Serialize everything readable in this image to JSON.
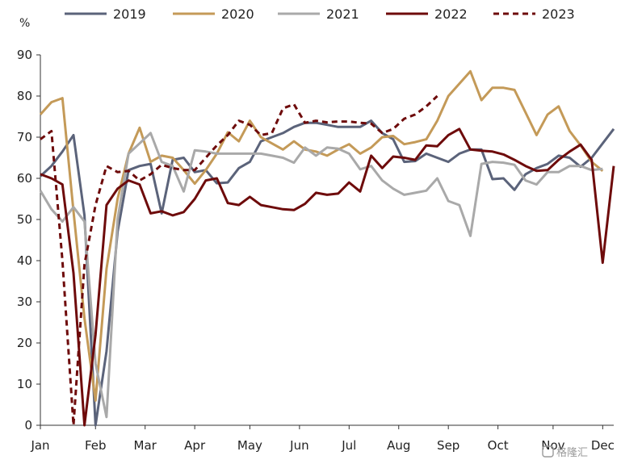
{
  "chart_data": {
    "type": "line",
    "ylabel": "%",
    "ylim": [
      0,
      90
    ],
    "y_ticks": [
      0,
      10,
      20,
      30,
      40,
      50,
      60,
      70,
      80,
      90
    ],
    "x_range": [
      1,
      53
    ],
    "month_labels": [
      "Jan",
      "Feb",
      "Mar",
      "Apr",
      "May",
      "Jun",
      "Jul",
      "Aug",
      "Sep",
      "Oct",
      "Nov",
      "Dec"
    ],
    "month_tick_positions": [
      1,
      6,
      10.5,
      15,
      20,
      24.5,
      29,
      33.5,
      38,
      42.5,
      47.5,
      52
    ],
    "legend_position": "top",
    "grid": false,
    "series": [
      {
        "name": "2019",
        "color": "#5b637a",
        "dash": "solid",
        "points": [
          [
            1,
            60.5
          ],
          [
            2,
            63
          ],
          [
            3,
            66.5
          ],
          [
            4,
            70.5
          ],
          [
            5,
            51
          ],
          [
            6,
            0
          ],
          [
            7,
            18
          ],
          [
            8,
            47
          ],
          [
            9,
            62
          ],
          [
            10,
            63
          ],
          [
            11,
            63.5
          ],
          [
            12,
            51.5
          ],
          [
            13,
            64.5
          ],
          [
            14,
            65
          ],
          [
            15,
            61.5
          ],
          [
            16,
            62
          ],
          [
            17,
            58.8
          ],
          [
            18,
            59
          ],
          [
            19,
            62.5
          ],
          [
            20,
            64
          ],
          [
            21,
            69
          ],
          [
            22,
            70
          ],
          [
            23,
            71
          ],
          [
            24,
            72.5
          ],
          [
            25,
            73.5
          ],
          [
            26,
            73.5
          ],
          [
            27,
            73
          ],
          [
            28,
            72.5
          ],
          [
            29,
            72.5
          ],
          [
            30,
            72.5
          ],
          [
            31,
            74
          ],
          [
            32,
            71
          ],
          [
            33,
            69.5
          ],
          [
            34,
            64
          ],
          [
            35,
            64.2
          ],
          [
            36,
            66
          ],
          [
            37,
            65
          ],
          [
            38,
            64
          ],
          [
            39,
            66
          ],
          [
            40,
            67
          ],
          [
            41,
            67
          ],
          [
            42,
            59.8
          ],
          [
            43,
            60
          ],
          [
            44,
            57.2
          ],
          [
            45,
            61
          ],
          [
            46,
            62.5
          ],
          [
            47,
            63.5
          ],
          [
            48,
            65.5
          ],
          [
            49,
            65
          ],
          [
            50,
            62.8
          ],
          [
            51,
            65
          ],
          [
            52,
            68.5
          ],
          [
            53,
            72
          ]
        ]
      },
      {
        "name": "2020",
        "color": "#c49a58",
        "dash": "solid",
        "points": [
          [
            1,
            75.5
          ],
          [
            2,
            78.5
          ],
          [
            3,
            79.5
          ],
          [
            4,
            52
          ],
          [
            5,
            26
          ],
          [
            6,
            6
          ],
          [
            7,
            38
          ],
          [
            8,
            55
          ],
          [
            9,
            66
          ],
          [
            10,
            72.3
          ],
          [
            11,
            64
          ],
          [
            12,
            65.5
          ],
          [
            13,
            65
          ],
          [
            14,
            62
          ],
          [
            15,
            58.7
          ],
          [
            16,
            62
          ],
          [
            17,
            66
          ],
          [
            18,
            71.2
          ],
          [
            19,
            69
          ],
          [
            20,
            74
          ],
          [
            21,
            70
          ],
          [
            22,
            68.5
          ],
          [
            23,
            67
          ],
          [
            24,
            69
          ],
          [
            25,
            67
          ],
          [
            26,
            66.5
          ],
          [
            27,
            65.5
          ],
          [
            28,
            67
          ],
          [
            29,
            68.3
          ],
          [
            30,
            66
          ],
          [
            31,
            67.5
          ],
          [
            32,
            70
          ],
          [
            33,
            70.3
          ],
          [
            34,
            68.3
          ],
          [
            35,
            68.8
          ],
          [
            36,
            69.5
          ],
          [
            37,
            74
          ],
          [
            38,
            80
          ],
          [
            39,
            83
          ],
          [
            40,
            86
          ],
          [
            41,
            79
          ],
          [
            42,
            82
          ],
          [
            43,
            82
          ],
          [
            44,
            81.5
          ],
          [
            45,
            76
          ],
          [
            46,
            70.5
          ],
          [
            47,
            75.5
          ],
          [
            48,
            77.5
          ],
          [
            49,
            71.5
          ],
          [
            50,
            68
          ],
          [
            51,
            64
          ],
          [
            52,
            61.8
          ]
        ]
      },
      {
        "name": "2021",
        "color": "#a9a9a9",
        "dash": "solid",
        "points": [
          [
            1,
            57
          ],
          [
            2,
            52.5
          ],
          [
            3,
            49.5
          ],
          [
            4,
            53
          ],
          [
            5,
            49.5
          ],
          [
            6,
            15
          ],
          [
            7,
            2
          ],
          [
            8,
            50
          ],
          [
            9,
            66
          ],
          [
            10,
            68.5
          ],
          [
            11,
            71
          ],
          [
            12,
            64
          ],
          [
            13,
            63
          ],
          [
            14,
            56.8
          ],
          [
            15,
            66.8
          ],
          [
            16,
            66.5
          ],
          [
            17,
            66
          ],
          [
            18,
            66
          ],
          [
            19,
            66
          ],
          [
            20,
            66
          ],
          [
            21,
            66
          ],
          [
            22,
            65.5
          ],
          [
            23,
            65
          ],
          [
            24,
            63.8
          ],
          [
            25,
            67.5
          ],
          [
            26,
            65.5
          ],
          [
            27,
            67.5
          ],
          [
            28,
            67.2
          ],
          [
            29,
            66
          ],
          [
            30,
            62.2
          ],
          [
            31,
            63
          ],
          [
            32,
            59.5
          ],
          [
            33,
            57.5
          ],
          [
            34,
            56
          ],
          [
            35,
            56.5
          ],
          [
            36,
            57
          ],
          [
            37,
            60
          ],
          [
            38,
            54.5
          ],
          [
            39,
            53.5
          ],
          [
            40,
            46
          ],
          [
            41,
            63.5
          ],
          [
            42,
            64
          ],
          [
            43,
            63.8
          ],
          [
            44,
            63.3
          ],
          [
            45,
            59.5
          ],
          [
            46,
            58.5
          ],
          [
            47,
            61.5
          ],
          [
            48,
            61.5
          ],
          [
            49,
            63
          ],
          [
            50,
            63
          ],
          [
            51,
            62
          ],
          [
            52,
            62.3
          ]
        ]
      },
      {
        "name": "2022",
        "color": "#6e0b0b",
        "dash": "solid",
        "points": [
          [
            1,
            61
          ],
          [
            2,
            60
          ],
          [
            3,
            58.5
          ],
          [
            4,
            37
          ],
          [
            5,
            0
          ],
          [
            6,
            22
          ],
          [
            7,
            53.5
          ],
          [
            8,
            57.5
          ],
          [
            9,
            59.5
          ],
          [
            10,
            58.5
          ],
          [
            11,
            51.5
          ],
          [
            12,
            52
          ],
          [
            13,
            51
          ],
          [
            14,
            51.8
          ],
          [
            15,
            55
          ],
          [
            16,
            59.5
          ],
          [
            17,
            60
          ],
          [
            18,
            54
          ],
          [
            19,
            53.5
          ],
          [
            20,
            55.5
          ],
          [
            21,
            53.5
          ],
          [
            22,
            53
          ],
          [
            23,
            52.5
          ],
          [
            24,
            52.3
          ],
          [
            25,
            53.8
          ],
          [
            26,
            56.5
          ],
          [
            27,
            56
          ],
          [
            28,
            56.3
          ],
          [
            29,
            59
          ],
          [
            30,
            56.8
          ],
          [
            31,
            65.5
          ],
          [
            32,
            62.5
          ],
          [
            33,
            65.3
          ],
          [
            34,
            65
          ],
          [
            35,
            64.5
          ],
          [
            36,
            68
          ],
          [
            37,
            67.8
          ],
          [
            38,
            70.5
          ],
          [
            39,
            72
          ],
          [
            40,
            67
          ],
          [
            41,
            66.7
          ],
          [
            42,
            66.5
          ],
          [
            43,
            65.8
          ],
          [
            44,
            64.5
          ],
          [
            45,
            63
          ],
          [
            46,
            61.8
          ],
          [
            47,
            62
          ],
          [
            48,
            64.5
          ],
          [
            49,
            66.5
          ],
          [
            50,
            68.2
          ],
          [
            51,
            64.5
          ],
          [
            52,
            39.5
          ],
          [
            53,
            63
          ]
        ]
      },
      {
        "name": "2023",
        "color": "#6e0b0b",
        "dash": "dashed",
        "points": [
          [
            1,
            69.5
          ],
          [
            2,
            71.5
          ],
          [
            3,
            40
          ],
          [
            4,
            0
          ],
          [
            5,
            39
          ],
          [
            6,
            53.5
          ],
          [
            7,
            63
          ],
          [
            8,
            61.5
          ],
          [
            9,
            61.8
          ],
          [
            10,
            59.5
          ],
          [
            11,
            61
          ],
          [
            12,
            63.3
          ],
          [
            13,
            62.5
          ],
          [
            14,
            62
          ],
          [
            15,
            62
          ],
          [
            16,
            65
          ],
          [
            17,
            68
          ],
          [
            18,
            70.5
          ],
          [
            19,
            74
          ],
          [
            20,
            73
          ],
          [
            21,
            70.5
          ],
          [
            22,
            71
          ],
          [
            23,
            77
          ],
          [
            24,
            78
          ],
          [
            25,
            73.5
          ],
          [
            26,
            74
          ],
          [
            27,
            73.6
          ],
          [
            28,
            73.8
          ],
          [
            29,
            73.8
          ],
          [
            30,
            73.5
          ],
          [
            31,
            73.3
          ],
          [
            32,
            71
          ],
          [
            33,
            72
          ],
          [
            34,
            74.5
          ],
          [
            35,
            75.5
          ],
          [
            36,
            77.5
          ],
          [
            37,
            80
          ]
        ]
      }
    ]
  },
  "watermark": "格隆汇"
}
